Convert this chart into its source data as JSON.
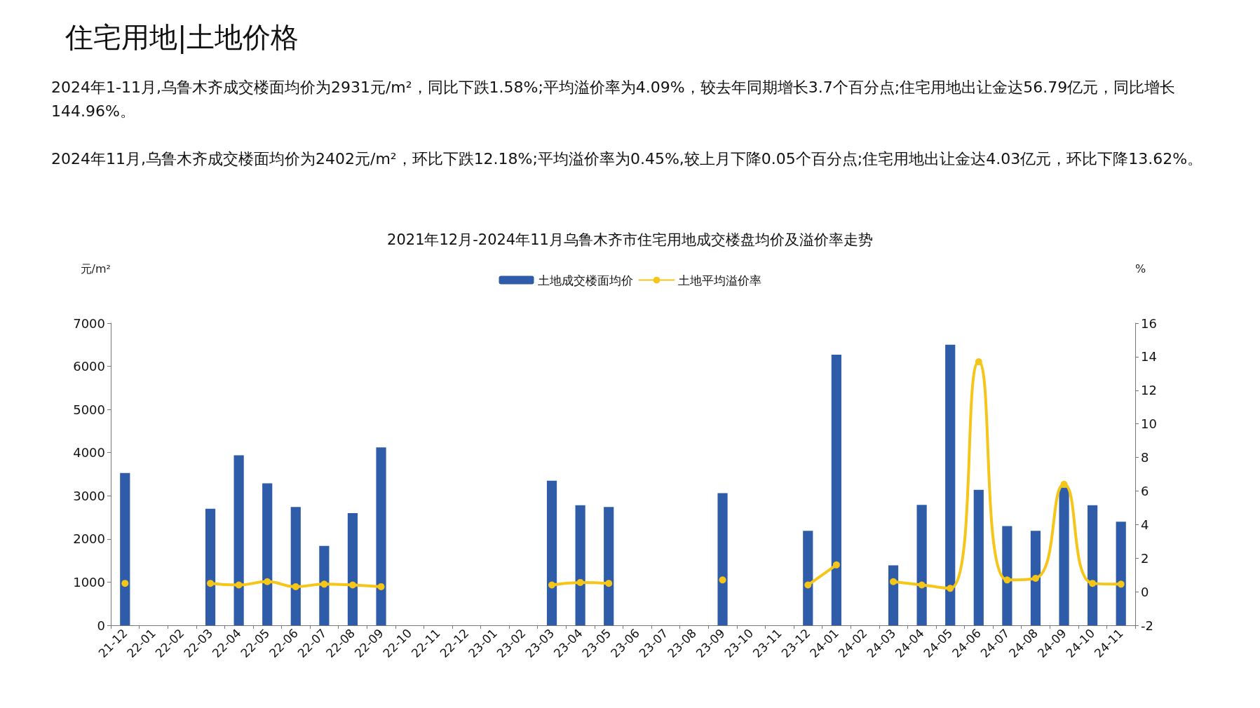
{
  "chart_data": {
    "type": "bar",
    "title": "住宅用地|土地价格",
    "subtitle": "2021年12月-2024年11月乌鲁木齐市住宅用地成交楼盘均价及溢价率走势",
    "annotations": [
      "2024年1-11月,乌鲁木齐成交楼面均价为2931元/m²，同比下跌1.58%;平均溢价率为4.09%，较去年同期增长3.7个百分点;住宅用地出让金达56.79亿元，同比增长144.96%。",
      "2024年11月,乌鲁木齐成交楼面均价为2402元/m²，环比下跌12.18%;平均溢价率为0.45%,较上月下降0.05个百分点;住宅用地出让金达4.03亿元，环比下降13.62%。"
    ],
    "ylabel": "元/m²",
    "y2label": "%",
    "categories": [
      "21-12",
      "22-01",
      "22-02",
      "22-03",
      "22-04",
      "22-05",
      "22-06",
      "22-07",
      "22-08",
      "22-09",
      "22-10",
      "22-11",
      "22-12",
      "23-01",
      "23-02",
      "23-03",
      "23-04",
      "23-05",
      "23-06",
      "23-07",
      "23-08",
      "23-09",
      "23-10",
      "23-11",
      "23-12",
      "24-01",
      "24-02",
      "24-03",
      "24-04",
      "24-05",
      "24-06",
      "24-07",
      "24-08",
      "24-09",
      "24-10",
      "24-11"
    ],
    "series": [
      {
        "name": "土地成交楼面均价",
        "color": "#2e5ca8",
        "values": [
          3530,
          null,
          null,
          2700,
          3940,
          3290,
          2740,
          1840,
          2600,
          4120,
          null,
          null,
          null,
          null,
          null,
          3350,
          2780,
          2740,
          null,
          null,
          null,
          3060,
          null,
          null,
          2190,
          6270,
          null,
          1390,
          2790,
          6500,
          3140,
          2300,
          2190,
          3190,
          2780,
          2400
        ]
      },
      {
        "name": "土地平均溢价率",
        "type": "line",
        "axis": "y2",
        "color": "#f5c518",
        "values": [
          0.5,
          null,
          null,
          0.5,
          0.4,
          0.6,
          0.3,
          0.45,
          0.4,
          0.3,
          null,
          null,
          null,
          null,
          null,
          0.4,
          0.55,
          0.5,
          null,
          null,
          null,
          0.7,
          null,
          null,
          0.4,
          1.6,
          null,
          0.6,
          0.4,
          0.2,
          13.7,
          0.7,
          0.8,
          6.4,
          0.5,
          0.45
        ]
      }
    ],
    "ylim": [
      0,
      7000
    ],
    "yticks": [
      0,
      1000,
      2000,
      3000,
      4000,
      5000,
      6000,
      7000
    ],
    "y2lim": [
      -2,
      16
    ],
    "y2ticks": [
      -2,
      0,
      2,
      4,
      6,
      8,
      10,
      12,
      14,
      16
    ],
    "legend": "top",
    "grid": false,
    "marker": "circle",
    "line_style": "solid"
  }
}
